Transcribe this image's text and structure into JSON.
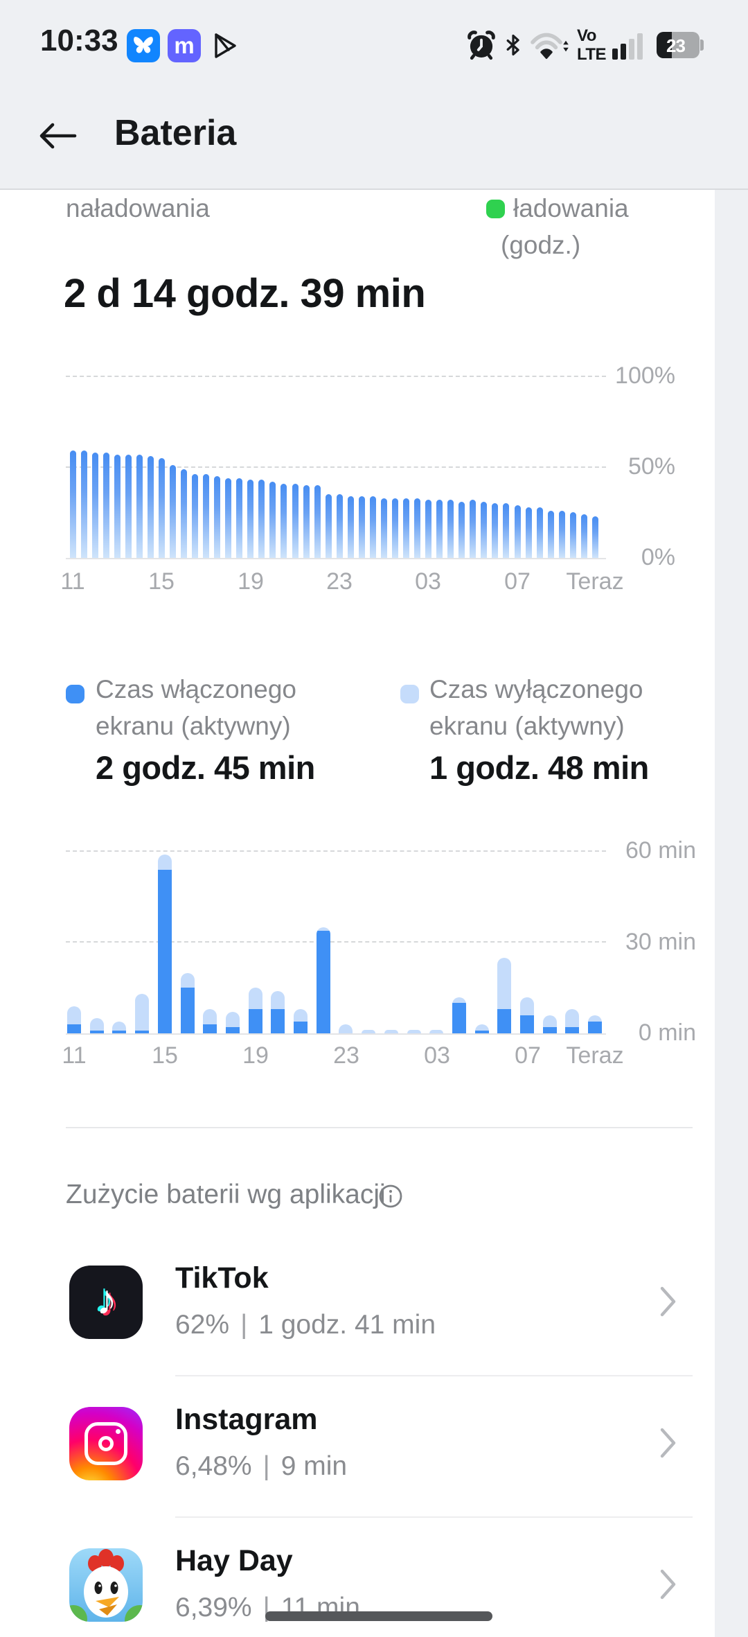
{
  "colors": {
    "background": "#eef0f3",
    "surface": "#ffffff",
    "charging_green": "#2fd14f",
    "screen_on_blue": "#3f90f5",
    "screen_off_blue": "#c5dcfb",
    "battery_bar_top": "#478df2",
    "battery_bar_bottom": "#cfe4fb"
  },
  "status_bar": {
    "time": "10:33",
    "notification_icons": [
      "bluesky",
      "mastodon",
      "play-store"
    ],
    "mastodon_glyph": "m",
    "volte_line1": "Vo",
    "volte_line2": "LTE",
    "battery_percent": "23"
  },
  "header": {
    "title": "Bateria"
  },
  "battery_section": {
    "legend_left": "naładowania",
    "legend_charging_line1": "ładowania",
    "legend_charging_line2": "(godz.)",
    "duration": "2 d 14 godz. 39 min"
  },
  "screen_time": {
    "on_label_line1": "Czas włączonego",
    "on_label_line2": "ekranu (aktywny)",
    "on_value": "2 godz. 45 min",
    "off_label_line1": "Czas wyłączonego",
    "off_label_line2": "ekranu (aktywny)",
    "off_value": "1 godz. 48 min"
  },
  "chart_data": [
    {
      "type": "bar",
      "unit": "%",
      "ylim": [
        0,
        100
      ],
      "y_ticks": [
        "100%",
        "50%",
        "0%"
      ],
      "x_ticks": [
        "11",
        "15",
        "19",
        "23",
        "03",
        "07",
        "Teraz"
      ],
      "values": [
        59,
        59,
        58,
        58,
        57,
        57,
        57,
        56,
        55,
        51,
        49,
        46,
        46,
        45,
        44,
        44,
        43,
        43,
        42,
        41,
        41,
        40,
        40,
        35,
        35,
        34,
        34,
        34,
        33,
        33,
        33,
        33,
        32,
        32,
        32,
        31,
        32,
        31,
        30,
        30,
        29,
        28,
        28,
        26,
        26,
        25,
        24,
        23
      ]
    },
    {
      "type": "stacked-bar",
      "unit": "min",
      "ylim": [
        0,
        60
      ],
      "y_ticks": [
        "60 min",
        "30 min",
        "0 min"
      ],
      "x_ticks": [
        "11",
        "15",
        "19",
        "23",
        "03",
        "07",
        "Teraz"
      ],
      "series": [
        {
          "name": "Czas włączonego ekranu (aktywny)",
          "color": "#3f90f5",
          "values": [
            3,
            1,
            1,
            1,
            54,
            15,
            3,
            2,
            8,
            8,
            4,
            34,
            0,
            0,
            0,
            0,
            0,
            10,
            1,
            8,
            6,
            2,
            2,
            4
          ]
        },
        {
          "name": "Czas wyłączonego ekranu (aktywny)",
          "color": "#c5dcfb",
          "values": [
            6,
            4,
            3,
            12,
            5,
            5,
            5,
            5,
            7,
            6,
            4,
            1,
            3,
            1,
            1,
            1,
            1,
            2,
            2,
            17,
            6,
            4,
            6,
            2
          ]
        }
      ]
    }
  ],
  "app_usage": {
    "title": "Zużycie baterii wg aplikacji",
    "separator": "|",
    "apps": [
      {
        "name": "TikTok",
        "percent": "62%",
        "time": "1 godz. 41 min"
      },
      {
        "name": "Instagram",
        "percent": "6,48%",
        "time": "9 min"
      },
      {
        "name": "Hay Day",
        "percent": "6,39%",
        "time": "11 min"
      }
    ]
  }
}
